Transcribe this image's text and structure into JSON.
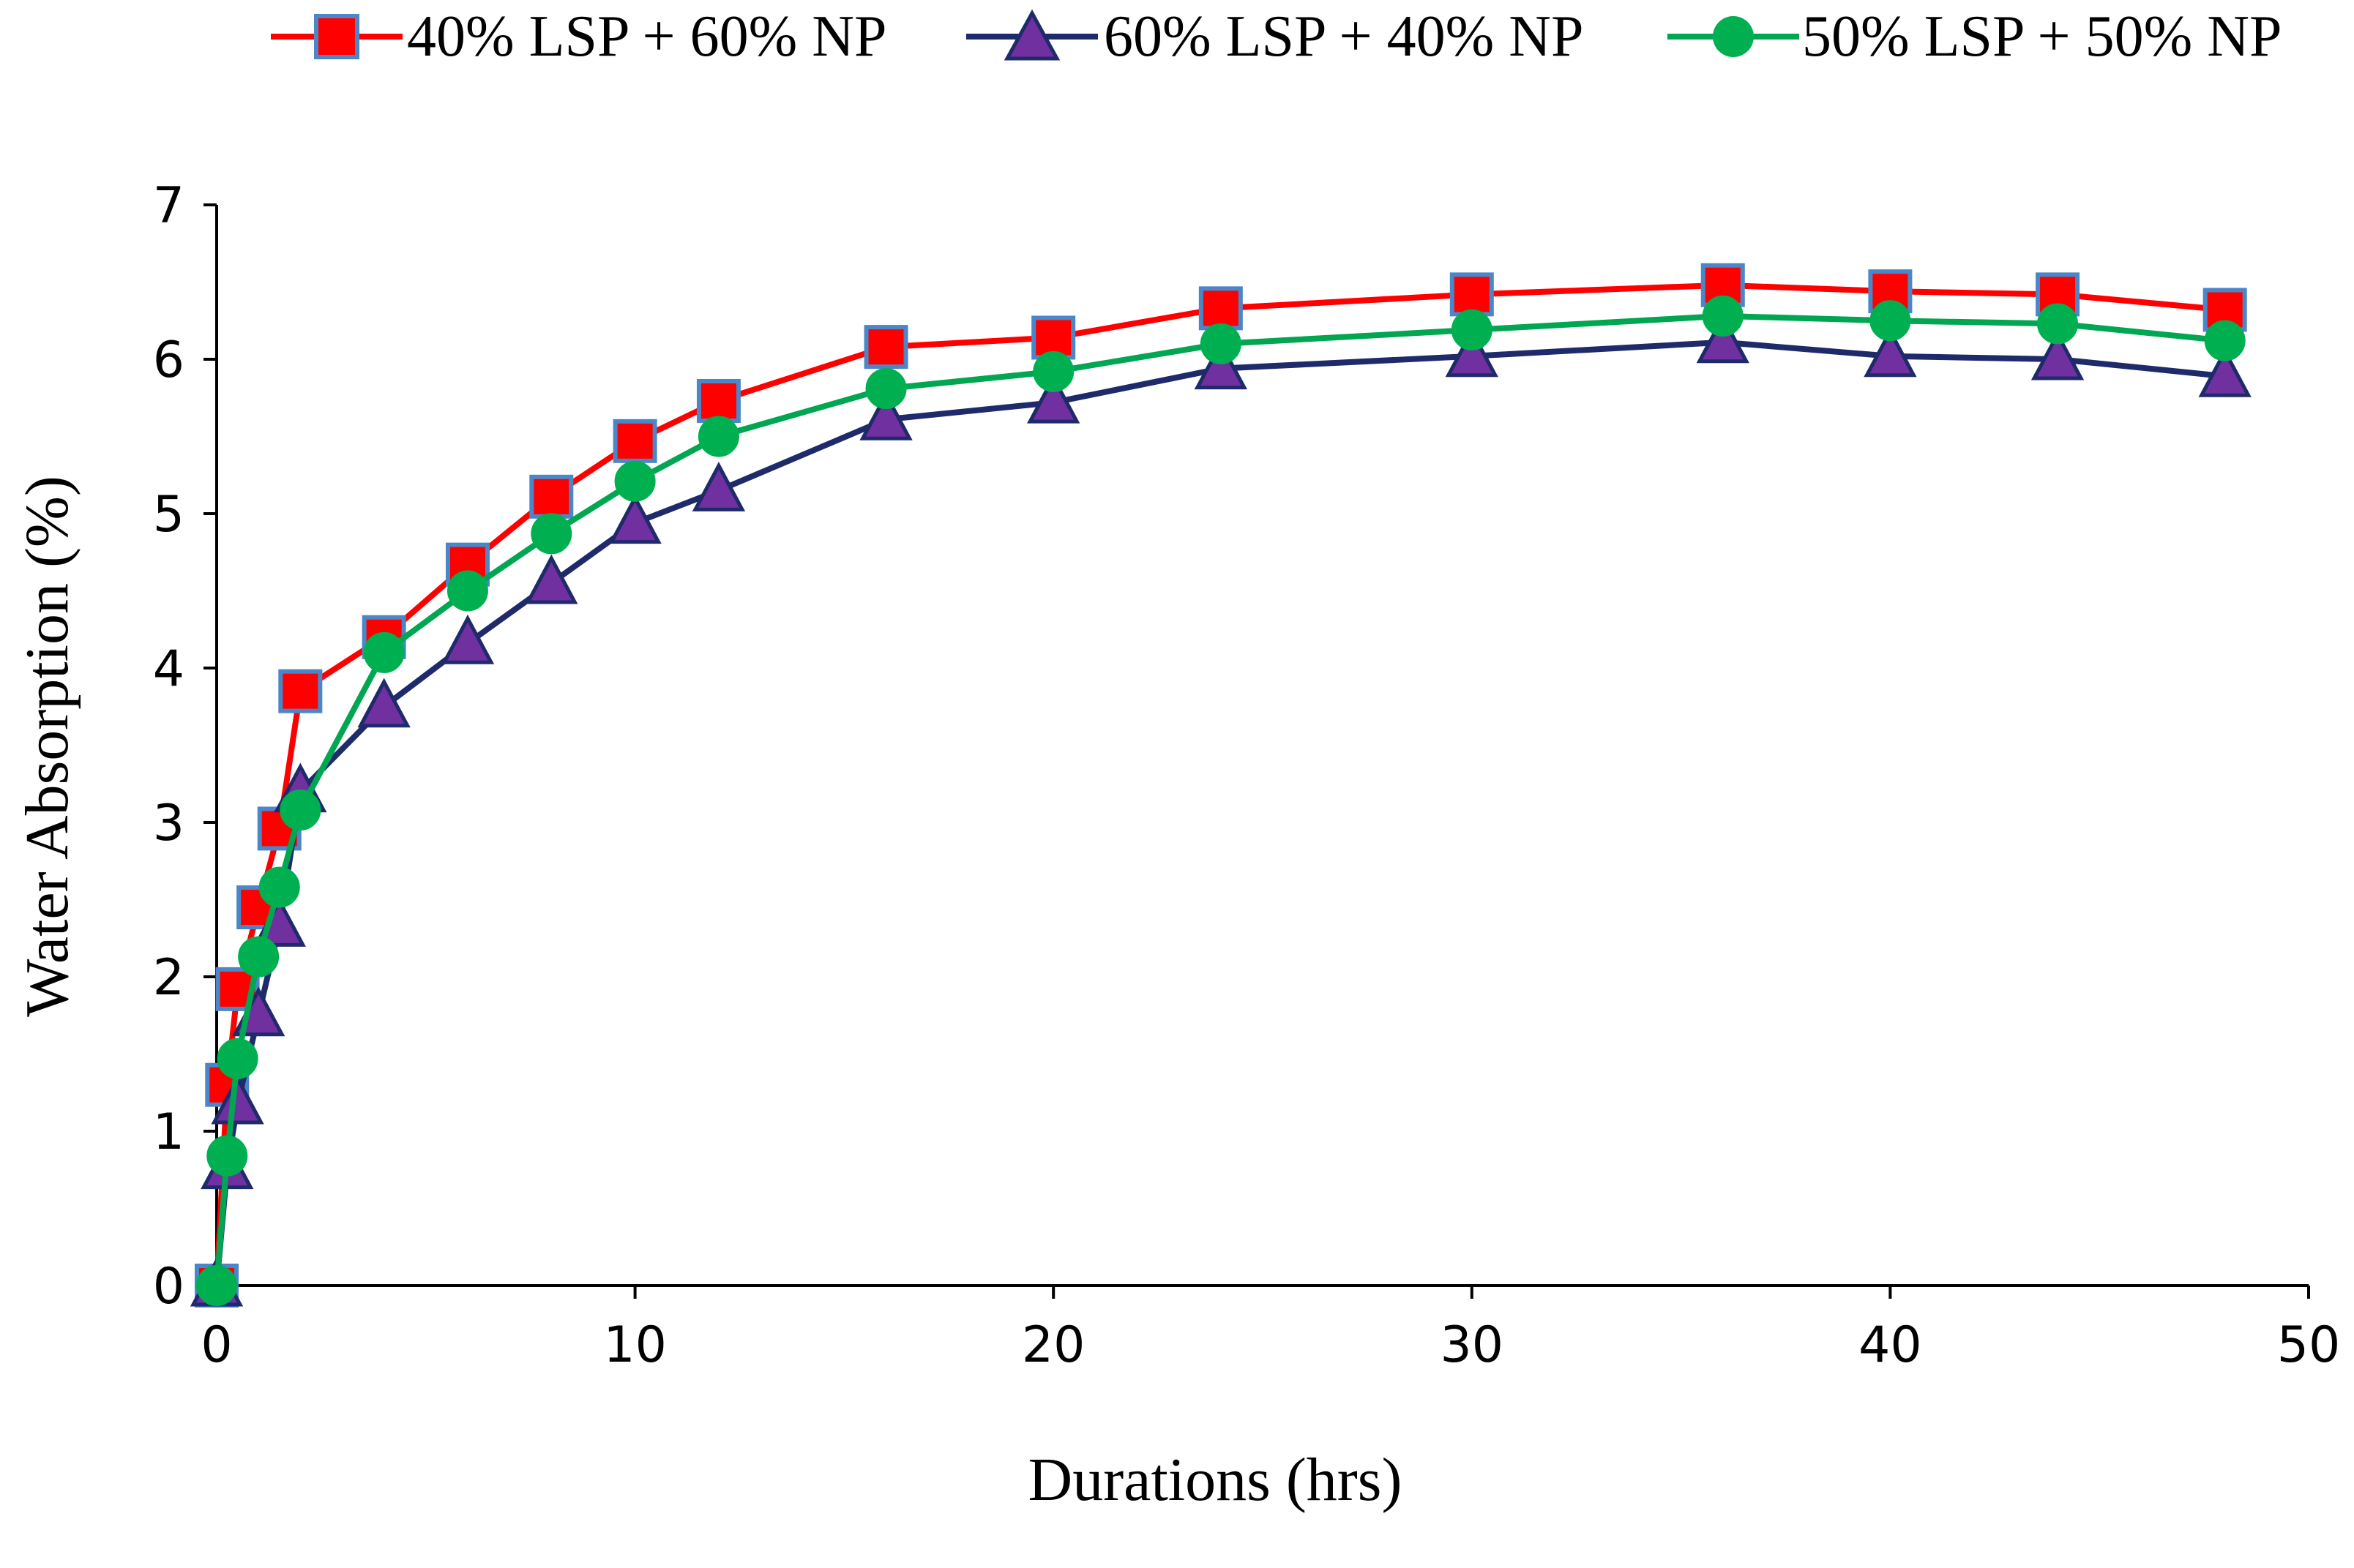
{
  "chart_data": {
    "type": "line",
    "xlabel": "Durations (hrs)",
    "ylabel": "Water Absorption  (%)",
    "xlim": [
      0,
      50
    ],
    "ylim": [
      0,
      7
    ],
    "x_ticks": [
      "0",
      "10",
      "20",
      "30",
      "40",
      "50"
    ],
    "y_ticks": [
      "0",
      "1",
      "2",
      "3",
      "4",
      "5",
      "6",
      "7"
    ],
    "grid": false,
    "legend_position": "top",
    "series": [
      {
        "name": "40% LSP + 60% NP",
        "line_color": "#ff0000",
        "marker": "square",
        "marker_fill": "#ff0000",
        "marker_edge": "#4a86c8",
        "x": [
          0,
          0.25,
          0.5,
          1,
          1.5,
          2,
          4,
          6,
          8,
          10,
          12,
          16,
          20,
          24,
          30,
          36,
          40,
          44,
          48
        ],
        "y": [
          0,
          1.3,
          1.92,
          2.45,
          2.96,
          3.85,
          4.2,
          4.67,
          5.11,
          5.47,
          5.73,
          6.08,
          6.14,
          6.33,
          6.42,
          6.48,
          6.44,
          6.42,
          6.32
        ]
      },
      {
        "name": "60% LSP + 40% NP",
        "line_color": "#1f2a6b",
        "marker": "triangle",
        "marker_fill": "#7030a0",
        "marker_edge": "#1f2a6b",
        "x": [
          0,
          0.25,
          0.5,
          1,
          1.5,
          2,
          4,
          6,
          8,
          10,
          12,
          16,
          20,
          24,
          30,
          36,
          40,
          44,
          48
        ],
        "y": [
          0,
          0.76,
          1.18,
          1.75,
          2.33,
          3.2,
          3.75,
          4.16,
          4.55,
          4.94,
          5.15,
          5.61,
          5.72,
          5.94,
          6.02,
          6.11,
          6.02,
          6.0,
          5.89
        ]
      },
      {
        "name": "50% LSP + 50% NP",
        "line_color": "#00a651",
        "marker": "circle",
        "marker_fill": "#00b050",
        "marker_edge": "#00b050",
        "x": [
          0,
          0.25,
          0.5,
          1,
          1.5,
          2,
          4,
          6,
          8,
          10,
          12,
          16,
          20,
          24,
          30,
          36,
          40,
          44,
          48
        ],
        "y": [
          0,
          0.84,
          1.47,
          2.13,
          2.58,
          3.08,
          4.1,
          4.5,
          4.87,
          5.21,
          5.5,
          5.81,
          5.92,
          6.1,
          6.19,
          6.28,
          6.25,
          6.23,
          6.12
        ]
      }
    ]
  }
}
